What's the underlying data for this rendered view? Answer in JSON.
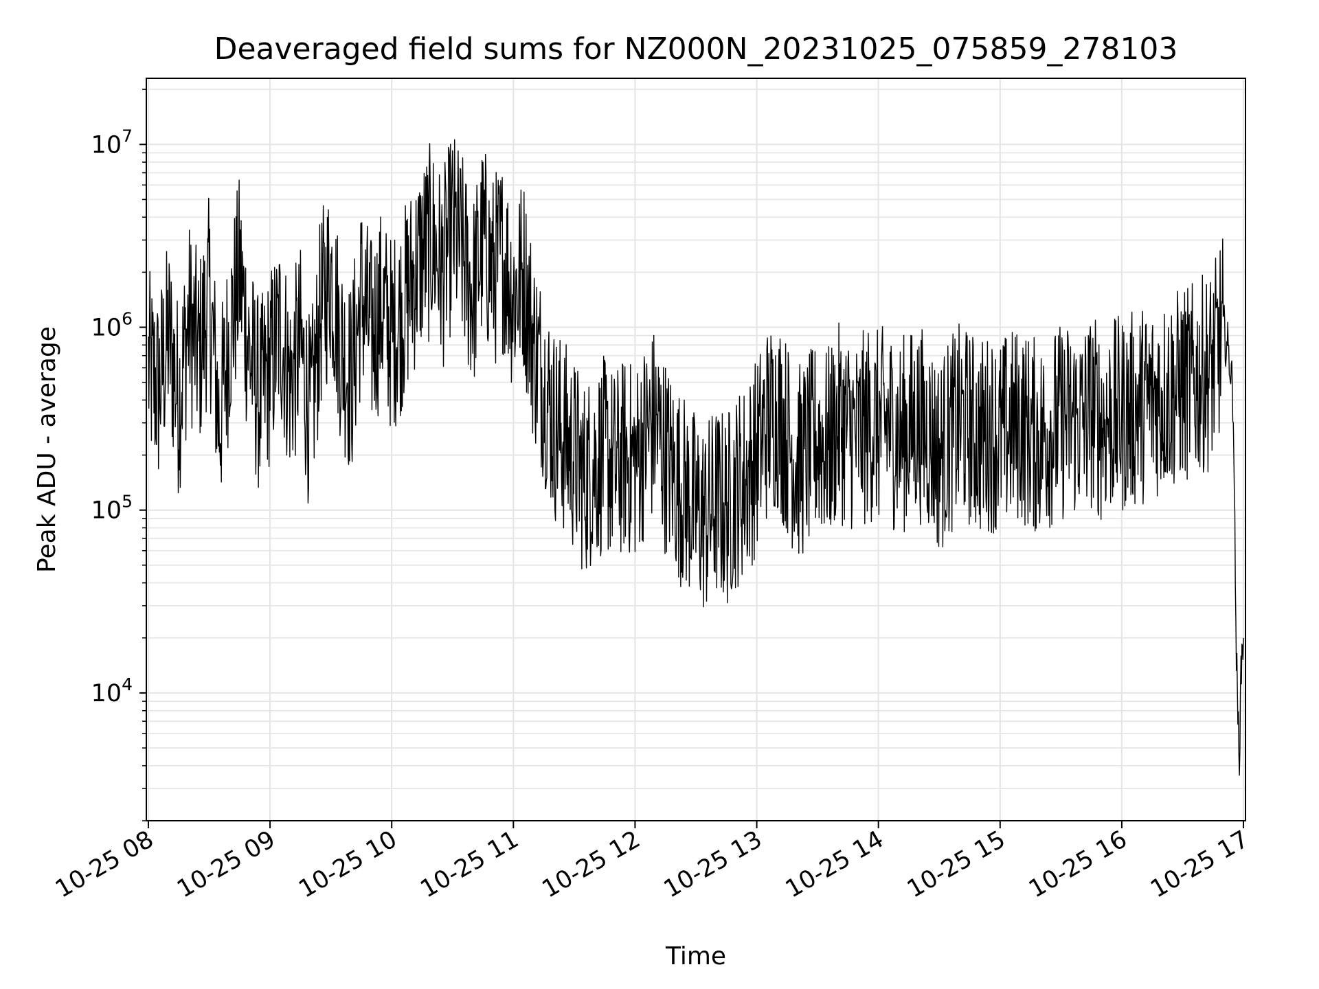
{
  "chart_data": {
    "type": "line",
    "title": "Deaveraged field sums for NZ000N_20231025_075859_278103",
    "xlabel": "Time",
    "ylabel": "Peak ADU - average",
    "yscale": "log",
    "ylim": [
      2000,
      23000000
    ],
    "xlim": [
      "2023-10-25 07:59",
      "2023-10-25 17:01"
    ],
    "grid": true,
    "line_color": "#000000",
    "grid_color": "#e6e6e6",
    "x_ticks": [
      "10-25 08",
      "10-25 09",
      "10-25 10",
      "10-25 11",
      "10-25 12",
      "10-25 13",
      "10-25 14",
      "10-25 15",
      "10-25 16",
      "10-25 17"
    ],
    "y_ticks": [
      {
        "value": 10000,
        "base": "10",
        "exp": "4"
      },
      {
        "value": 100000,
        "base": "10",
        "exp": "5"
      },
      {
        "value": 1000000,
        "base": "10",
        "exp": "6"
      },
      {
        "value": 10000000,
        "base": "10",
        "exp": "7"
      }
    ],
    "series": [
      {
        "points": [
          [
            "08:00",
            600000
          ],
          [
            "08:05",
            450000
          ],
          [
            "08:10",
            900000
          ],
          [
            "08:15",
            400000
          ],
          [
            "08:20",
            1100000
          ],
          [
            "08:25",
            700000
          ],
          [
            "08:30",
            1500000
          ],
          [
            "08:35",
            300000
          ],
          [
            "08:40",
            900000
          ],
          [
            "08:45",
            2000000
          ],
          [
            "08:50",
            700000
          ],
          [
            "08:55",
            400000
          ],
          [
            "09:00",
            600000
          ],
          [
            "09:05",
            1000000
          ],
          [
            "09:10",
            500000
          ],
          [
            "09:15",
            800000
          ],
          [
            "09:20",
            300000
          ],
          [
            "09:25",
            1200000
          ],
          [
            "09:30",
            2000000
          ],
          [
            "09:35",
            800000
          ],
          [
            "09:40",
            500000
          ],
          [
            "09:45",
            1500000
          ],
          [
            "09:50",
            900000
          ],
          [
            "09:55",
            1300000
          ],
          [
            "10:00",
            900000
          ],
          [
            "10:05",
            1200000
          ],
          [
            "10:10",
            1800000
          ],
          [
            "10:15",
            2500000
          ],
          [
            "10:20",
            3000000
          ],
          [
            "10:25",
            2000000
          ],
          [
            "10:30",
            3500000
          ],
          [
            "10:35",
            2500000
          ],
          [
            "10:40",
            1500000
          ],
          [
            "10:45",
            3000000
          ],
          [
            "10:50",
            2000000
          ],
          [
            "10:55",
            2500000
          ],
          [
            "11:00",
            1500000
          ],
          [
            "11:05",
            2000000
          ],
          [
            "11:10",
            800000
          ],
          [
            "11:15",
            500000
          ],
          [
            "11:20",
            300000
          ],
          [
            "11:25",
            250000
          ],
          [
            "11:30",
            200000
          ],
          [
            "11:35",
            150000
          ],
          [
            "11:40",
            180000
          ],
          [
            "11:45",
            200000
          ],
          [
            "11:50",
            170000
          ],
          [
            "11:55",
            200000
          ],
          [
            "12:00",
            180000
          ],
          [
            "12:05",
            250000
          ],
          [
            "12:10",
            300000
          ],
          [
            "12:15",
            200000
          ],
          [
            "12:20",
            150000
          ],
          [
            "12:25",
            120000
          ],
          [
            "12:30",
            100000
          ],
          [
            "12:35",
            90000
          ],
          [
            "12:40",
            110000
          ],
          [
            "12:45",
            100000
          ],
          [
            "12:50",
            130000
          ],
          [
            "12:55",
            150000
          ],
          [
            "13:00",
            200000
          ],
          [
            "13:05",
            300000
          ],
          [
            "13:10",
            350000
          ],
          [
            "13:15",
            250000
          ],
          [
            "13:20",
            180000
          ],
          [
            "13:25",
            200000
          ],
          [
            "13:30",
            250000
          ],
          [
            "13:35",
            220000
          ],
          [
            "13:40",
            300000
          ],
          [
            "13:45",
            280000
          ],
          [
            "13:50",
            250000
          ],
          [
            "13:55",
            300000
          ],
          [
            "14:00",
            280000
          ],
          [
            "14:05",
            300000
          ],
          [
            "14:10",
            250000
          ],
          [
            "14:15",
            280000
          ],
          [
            "14:20",
            300000
          ],
          [
            "14:25",
            260000
          ],
          [
            "14:30",
            200000
          ],
          [
            "14:35",
            250000
          ],
          [
            "14:40",
            300000
          ],
          [
            "14:45",
            280000
          ],
          [
            "14:50",
            250000
          ],
          [
            "14:55",
            270000
          ],
          [
            "15:00",
            250000
          ],
          [
            "15:05",
            280000
          ],
          [
            "15:10",
            300000
          ],
          [
            "15:15",
            260000
          ],
          [
            "15:20",
            250000
          ],
          [
            "15:25",
            280000
          ],
          [
            "15:30",
            300000
          ],
          [
            "15:35",
            320000
          ],
          [
            "15:40",
            300000
          ],
          [
            "15:45",
            350000
          ],
          [
            "15:50",
            300000
          ],
          [
            "15:55",
            320000
          ],
          [
            "16:00",
            330000
          ],
          [
            "16:05",
            350000
          ],
          [
            "16:10",
            380000
          ],
          [
            "16:15",
            400000
          ],
          [
            "16:20",
            420000
          ],
          [
            "16:25",
            450000
          ],
          [
            "16:30",
            480000
          ],
          [
            "16:35",
            500000
          ],
          [
            "16:40",
            550000
          ],
          [
            "16:45",
            600000
          ],
          [
            "16:50",
            1000000
          ],
          [
            "16:53",
            700000
          ],
          [
            "16:55",
            400000
          ],
          [
            "16:56",
            40000
          ],
          [
            "16:57",
            8000
          ],
          [
            "16:58",
            5000
          ],
          [
            "16:59",
            15000
          ],
          [
            "17:00",
            20000
          ]
        ]
      }
    ]
  }
}
